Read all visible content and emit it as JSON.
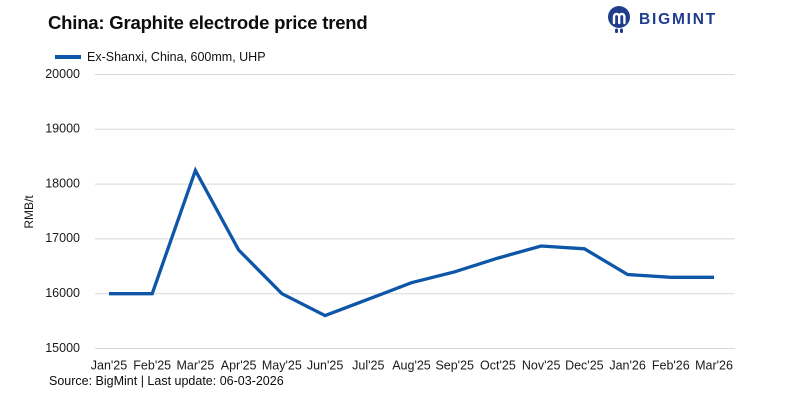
{
  "header": {
    "title": "China: Graphite electrode price trend",
    "logo_text": "BIGMINT"
  },
  "legend": {
    "label": "Ex-Shanxi, China, 600mm, UHP"
  },
  "footer": {
    "source": "Source: BigMint | Last update: 06-03-2026"
  },
  "colors": {
    "line": "#0E56A7",
    "logo": "#1F3D8C",
    "grid": "#D8D8D8",
    "tick_text": "#1A1A1A"
  },
  "chart_data": {
    "type": "line",
    "title": "China: Graphite electrode price trend",
    "ylabel": "RMB/t",
    "xlabel": "",
    "ylim": [
      15000,
      20000
    ],
    "ytick_interval": 1000,
    "grid": true,
    "legend_position": "top-left",
    "categories": [
      "Jan'25",
      "Feb'25",
      "Mar'25",
      "Apr'25",
      "May'25",
      "Jun'25",
      "Jul'25",
      "Aug'25",
      "Sep'25",
      "Oct'25",
      "Nov'25",
      "Dec'25",
      "Jan'26",
      "Feb'26",
      "Mar'26"
    ],
    "series": [
      {
        "name": "Ex-Shanxi, China, 600mm, UHP",
        "values": [
          16000,
          16000,
          18250,
          16800,
          16000,
          15600,
          15900,
          16200,
          16400,
          16650,
          16870,
          16820,
          16350,
          16300,
          16300
        ]
      }
    ]
  }
}
